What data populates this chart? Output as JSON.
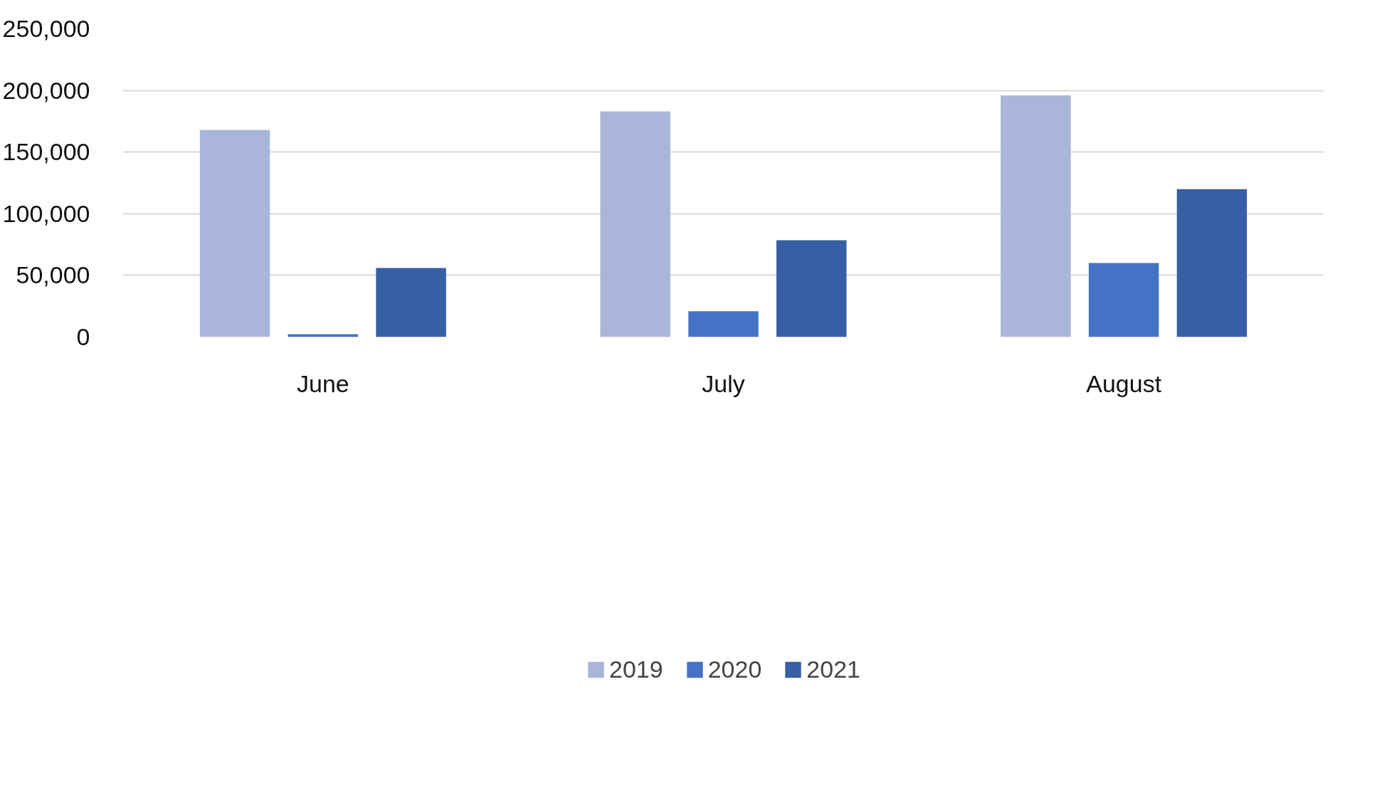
{
  "chart_data": {
    "type": "bar",
    "categories": [
      "June",
      "July",
      "August"
    ],
    "series": [
      {
        "name": "2019",
        "color": "#a9b6da",
        "values": [
          168000,
          183000,
          196000
        ]
      },
      {
        "name": "2020",
        "color": "#4472c4",
        "values": [
          2300,
          21000,
          60000
        ]
      },
      {
        "name": "2021",
        "color": "#375fa3",
        "values": [
          56000,
          78500,
          120000
        ]
      }
    ],
    "ylim": [
      0,
      250000
    ],
    "yticks": [
      {
        "value": 0,
        "label": "0"
      },
      {
        "value": 50000,
        "label": "50,000"
      },
      {
        "value": 100000,
        "label": "100,000"
      },
      {
        "value": 150000,
        "label": "150,000"
      },
      {
        "value": 200000,
        "label": "200,000"
      },
      {
        "value": 250000,
        "label": "250,000"
      }
    ],
    "grid": "y",
    "legend": "bottom"
  }
}
